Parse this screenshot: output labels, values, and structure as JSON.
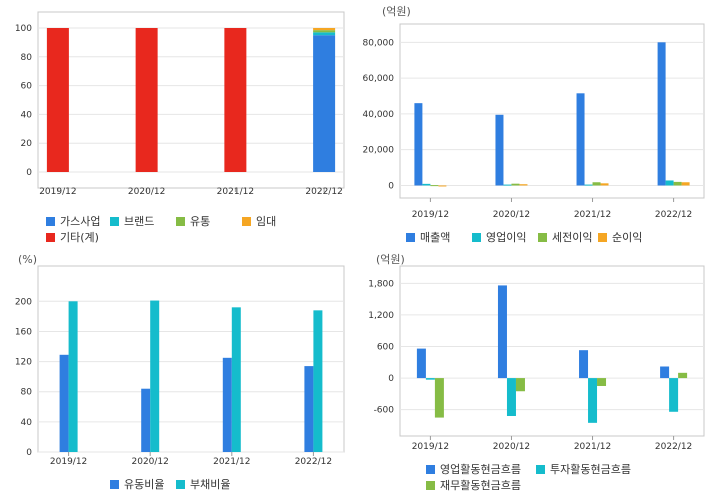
{
  "colors": {
    "blue": "#2f7ee0",
    "cyan": "#15bccc",
    "green": "#86bc45",
    "orange": "#f5a623",
    "red": "#e8281e",
    "grid": "#e6e6e6",
    "frame": "#c8c8c8"
  },
  "chart_data": [
    {
      "type": "bar",
      "stacked": true,
      "unit": "",
      "categories": [
        "2019/12",
        "2020/12",
        "2021/12",
        "2022/12"
      ],
      "ylim": [
        0,
        100
      ],
      "yticks": [
        0,
        20,
        40,
        60,
        80,
        100
      ],
      "ytick_labels": [
        "0",
        "20",
        "40",
        "60",
        "80",
        "100"
      ],
      "series": [
        {
          "name": "가스사업",
          "color": "#2f7ee0",
          "values": [
            0,
            0,
            0,
            95
          ]
        },
        {
          "name": "브랜드",
          "color": "#15bccc",
          "values": [
            0,
            0,
            0,
            2
          ]
        },
        {
          "name": "유통",
          "color": "#86bc45",
          "values": [
            0,
            0,
            0,
            1.5
          ]
        },
        {
          "name": "임대",
          "color": "#f5a623",
          "values": [
            0,
            0,
            0,
            1.5
          ]
        },
        {
          "name": "기타(계)",
          "color": "#e8281e",
          "values": [
            100,
            100,
            100,
            0
          ]
        }
      ],
      "legend_position": "bottom-left"
    },
    {
      "type": "bar",
      "unit": "(억원)",
      "categories": [
        "2019/12",
        "2020/12",
        "2021/12",
        "2022/12"
      ],
      "ylim": [
        -7000,
        88000
      ],
      "yticks": [
        0,
        20000,
        40000,
        60000,
        80000
      ],
      "ytick_labels": [
        "0",
        "20,000",
        "40,000",
        "60,000",
        "80,000"
      ],
      "series": [
        {
          "name": "매출액",
          "color": "#2f7ee0",
          "values": [
            46000,
            39500,
            51500,
            80000
          ]
        },
        {
          "name": "영업이익",
          "color": "#15bccc",
          "values": [
            900,
            500,
            500,
            2800
          ]
        },
        {
          "name": "세전이익",
          "color": "#86bc45",
          "values": [
            200,
            1000,
            1800,
            2000
          ]
        },
        {
          "name": "순이익",
          "color": "#f5a623",
          "values": [
            -400,
            700,
            1200,
            1800
          ]
        }
      ],
      "legend_position": "bottom"
    },
    {
      "type": "bar",
      "unit": "(%)",
      "categories": [
        "2019/12",
        "2020/12",
        "2021/12",
        "2022/12"
      ],
      "ylim": [
        0,
        215
      ],
      "yticks": [
        0,
        40,
        80,
        120,
        160,
        200
      ],
      "ytick_labels": [
        "0",
        "40",
        "80",
        "120",
        "160",
        "200"
      ],
      "series": [
        {
          "name": "유동비율",
          "color": "#2f7ee0",
          "values": [
            129,
            84,
            125,
            114
          ]
        },
        {
          "name": "부채비율",
          "color": "#15bccc",
          "values": [
            200,
            201,
            192,
            188
          ]
        }
      ],
      "legend_position": "bottom"
    },
    {
      "type": "bar",
      "unit": "(억원)",
      "categories": [
        "2019/12",
        "2020/12",
        "2021/12",
        "2022/12"
      ],
      "ylim": [
        -1100,
        1920
      ],
      "yticks": [
        -600,
        0,
        600,
        1200,
        1800
      ],
      "ytick_labels": [
        "-600",
        "0",
        "600",
        "1,200",
        "1,800"
      ],
      "series": [
        {
          "name": "영업활동현금흐름",
          "color": "#2f7ee0",
          "values": [
            560,
            1760,
            530,
            220
          ]
        },
        {
          "name": "투자활동현금흐름",
          "color": "#15bccc",
          "values": [
            -30,
            -720,
            -850,
            -640
          ]
        },
        {
          "name": "재무활동현금흐름",
          "color": "#86bc45",
          "values": [
            -750,
            -250,
            -150,
            100
          ]
        }
      ],
      "legend_position": "bottom"
    }
  ]
}
